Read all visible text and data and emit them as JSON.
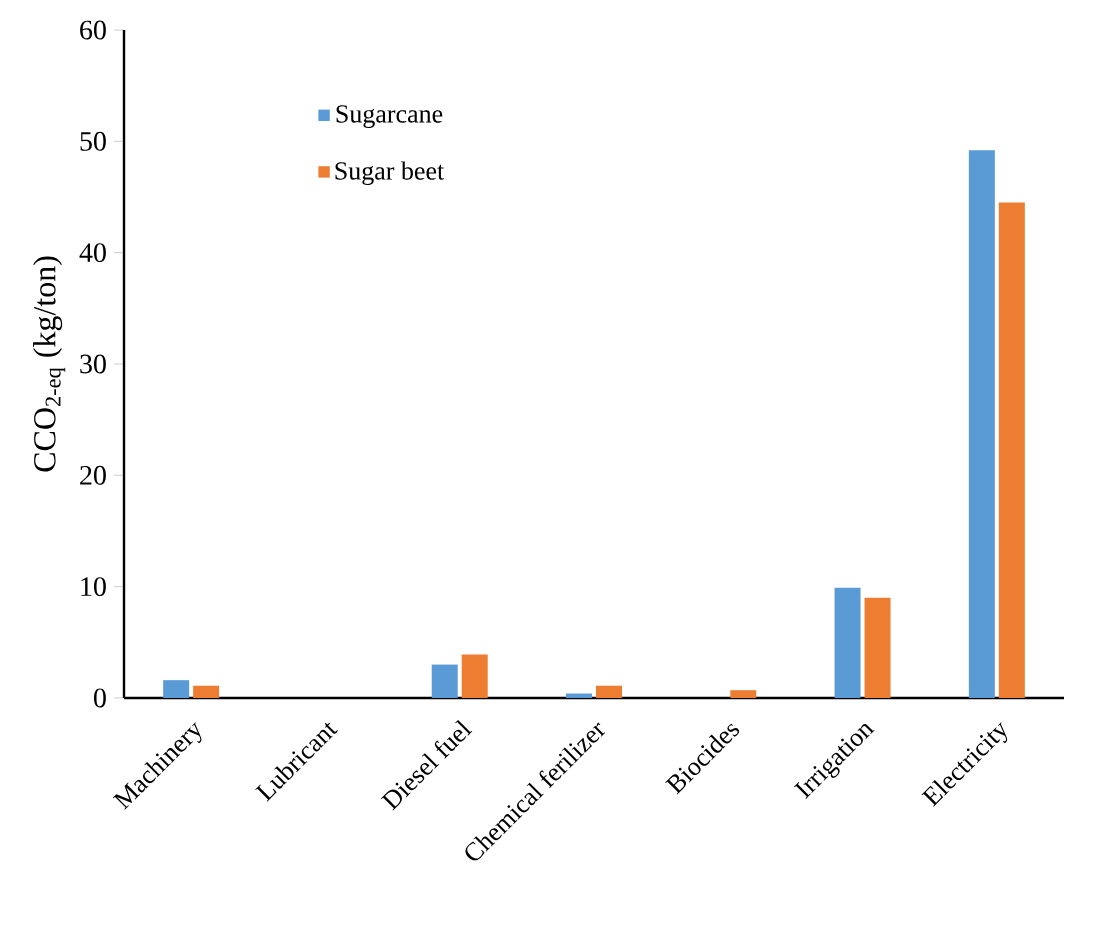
{
  "chart_data": {
    "type": "bar",
    "ylabel": "CCO$_{2-eq}$ (kg/ton)",
    "categories": [
      "Machinery",
      "Lubricant",
      "Diesel fuel",
      "Chemical ferilizer",
      "Biocides",
      "Irrigation",
      "Electricity"
    ],
    "series": [
      {
        "name": "Sugarcane",
        "color": "#5b9bd5",
        "values": [
          1.6,
          0,
          3.0,
          0.4,
          0,
          9.9,
          49.2
        ]
      },
      {
        "name": "Sugar beet",
        "color": "#ed7d31",
        "values": [
          1.1,
          0,
          3.9,
          1.1,
          0.7,
          9.0,
          44.5
        ]
      }
    ],
    "ylim": [
      0,
      60
    ],
    "yticks": [
      0,
      10,
      20,
      30,
      40,
      50,
      60
    ],
    "grid": false,
    "legend": "top left"
  }
}
